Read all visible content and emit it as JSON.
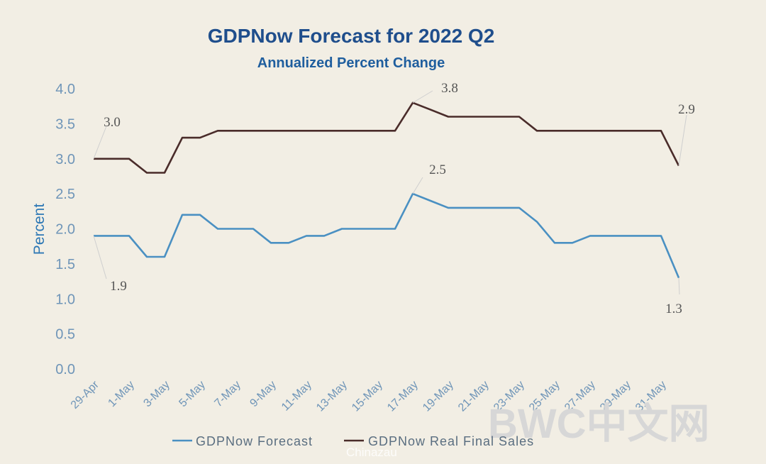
{
  "chart_data": {
    "type": "line",
    "title": "GDPNow Forecast for 2022 Q2",
    "subtitle": "Annualized Percent Change",
    "xlabel": "",
    "ylabel": "Percent",
    "ylim": [
      0,
      4.0
    ],
    "yticks": [
      "0.0",
      "0.5",
      "1.0",
      "1.5",
      "2.0",
      "2.5",
      "3.0",
      "3.5",
      "4.0"
    ],
    "grid": false,
    "legend_position": "bottom",
    "x": [
      "29-Apr",
      "30-Apr",
      "1-May",
      "2-May",
      "3-May",
      "4-May",
      "5-May",
      "6-May",
      "7-May",
      "8-May",
      "9-May",
      "10-May",
      "11-May",
      "12-May",
      "13-May",
      "14-May",
      "15-May",
      "16-May",
      "17-May",
      "18-May",
      "19-May",
      "20-May",
      "21-May",
      "22-May",
      "23-May",
      "24-May",
      "25-May",
      "26-May",
      "27-May",
      "28-May",
      "29-May",
      "30-May",
      "31-May",
      "1-Jun"
    ],
    "xtick_labels": [
      "29-Apr",
      "1-May",
      "3-May",
      "5-May",
      "7-May",
      "9-May",
      "11-May",
      "13-May",
      "15-May",
      "17-May",
      "19-May",
      "21-May",
      "23-May",
      "25-May",
      "27-May",
      "29-May",
      "31-May"
    ],
    "series": [
      {
        "name": "GDPNow Forecast",
        "color": "#4a90c2",
        "values": [
          1.9,
          1.9,
          1.9,
          1.6,
          1.6,
          2.2,
          2.2,
          2.0,
          2.0,
          2.0,
          1.8,
          1.8,
          1.9,
          1.9,
          2.0,
          2.0,
          2.0,
          2.0,
          2.5,
          2.4,
          2.3,
          2.3,
          2.3,
          2.3,
          2.3,
          2.1,
          1.8,
          1.8,
          1.9,
          1.9,
          1.9,
          1.9,
          1.9,
          1.3
        ]
      },
      {
        "name": "GDPNow Real Final Sales",
        "color": "#4a2c2a",
        "values": [
          3.0,
          3.0,
          3.0,
          2.8,
          2.8,
          3.3,
          3.3,
          3.4,
          3.4,
          3.4,
          3.4,
          3.4,
          3.4,
          3.4,
          3.4,
          3.4,
          3.4,
          3.4,
          3.8,
          3.7,
          3.6,
          3.6,
          3.6,
          3.6,
          3.6,
          3.4,
          3.4,
          3.4,
          3.4,
          3.4,
          3.4,
          3.4,
          3.4,
          2.9
        ]
      }
    ],
    "annotations": [
      {
        "series": 1,
        "index": 0,
        "text": "3.0"
      },
      {
        "series": 1,
        "index": 18,
        "text": "3.8"
      },
      {
        "series": 1,
        "index": 33,
        "text": "2.9"
      },
      {
        "series": 0,
        "index": 0,
        "text": "1.9"
      },
      {
        "series": 0,
        "index": 18,
        "text": "2.5"
      },
      {
        "series": 0,
        "index": 33,
        "text": "1.3"
      }
    ]
  },
  "watermark": {
    "main": "BWC中文网",
    "sub": "Chinazau"
  }
}
